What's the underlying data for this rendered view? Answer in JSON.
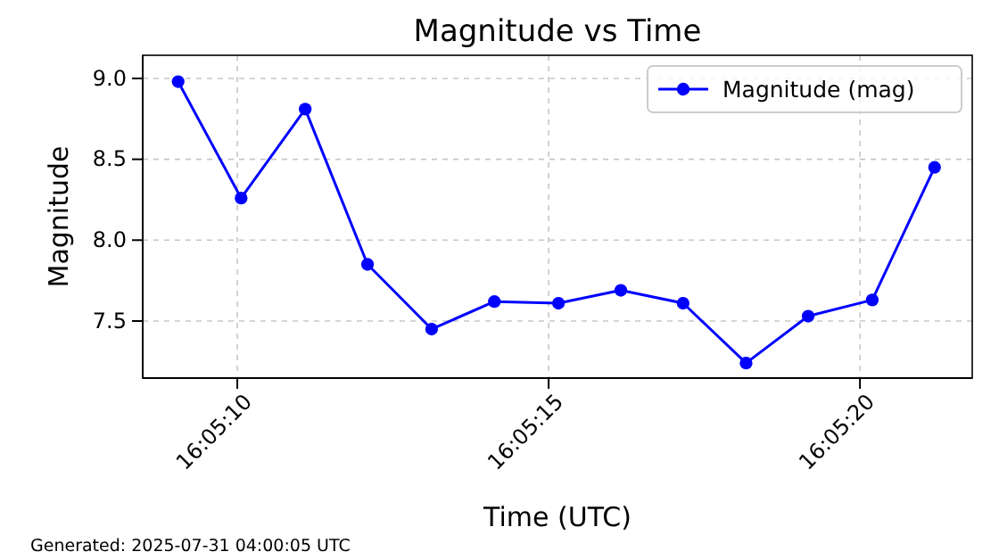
{
  "chart_data": {
    "type": "line",
    "title": "Magnitude vs Time",
    "xlabel": "Time (UTC)",
    "ylabel": "Magnitude",
    "x": [
      16.085847,
      16.086128,
      16.086414,
      16.086692,
      16.086978,
      16.087258,
      16.087544,
      16.087822,
      16.0881,
      16.088381,
      16.088658,
      16.088944,
      16.089222
    ],
    "series": [
      {
        "name": "Magnitude (mag)",
        "color": "#0000ff",
        "values": [
          8.98,
          8.26,
          8.81,
          7.85,
          7.45,
          7.62,
          7.61,
          7.69,
          7.61,
          7.24,
          7.53,
          7.63,
          8.45
        ]
      }
    ],
    "xlim": [
      16.085689,
      16.08939
    ],
    "xticks": [
      {
        "value": 16.086111,
        "label": "16:05:10"
      },
      {
        "value": 16.0875,
        "label": "16:05:15"
      },
      {
        "value": 16.088889,
        "label": "16:05:20"
      }
    ],
    "ylim": [
      7.147,
      9.143
    ],
    "yticks": [
      {
        "value": 7.5,
        "label": "7.5"
      },
      {
        "value": 8.0,
        "label": "8.0"
      },
      {
        "value": 8.5,
        "label": "8.5"
      },
      {
        "value": 9.0,
        "label": "9.0"
      }
    ],
    "grid": true,
    "legend": "top right",
    "marker": "circle",
    "line_style": "solid",
    "annotations": [
      "Generated: 2025-07-31 04:00:05 UTC"
    ]
  }
}
